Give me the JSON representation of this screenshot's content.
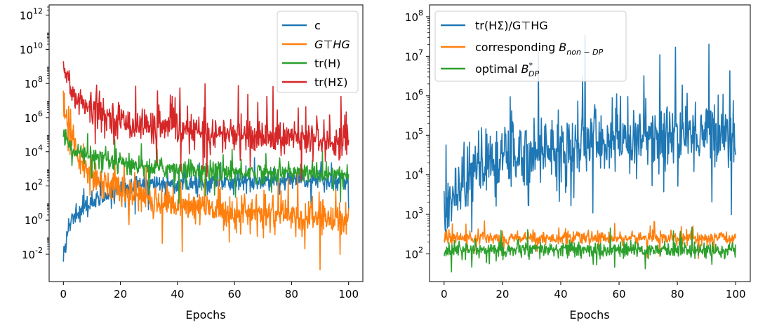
{
  "chart_data": [
    {
      "type": "line",
      "yscale": "log",
      "xlabel": "Epochs",
      "ylabel": "",
      "xlim": [
        -5,
        105
      ],
      "ylim_exp": [
        -3.6,
        12.6
      ],
      "xticks": [
        0,
        20,
        40,
        60,
        80,
        100
      ],
      "yticks": [
        {
          "base": "10",
          "exp": "12",
          "value": 12
        },
        {
          "base": "10",
          "exp": "10",
          "value": 10
        },
        {
          "base": "10",
          "exp": "8",
          "value": 8
        },
        {
          "base": "10",
          "exp": "6",
          "value": 6
        },
        {
          "base": "10",
          "exp": "4",
          "value": 4
        },
        {
          "base": "10",
          "exp": "2",
          "value": 2
        },
        {
          "base": "10",
          "exp": "0",
          "value": 0
        },
        {
          "base": "10",
          "exp": "-2",
          "value": -2
        }
      ],
      "legend_position": "top-right",
      "series": [
        {
          "name": "c",
          "legend_label": "c",
          "color": "#1f77b4",
          "x": [
            0,
            2,
            5,
            10,
            20,
            30,
            40,
            50,
            60,
            70,
            80,
            90,
            100
          ],
          "log10_values": [
            -2.2,
            -0.3,
            0.3,
            1.0,
            1.9,
            2.1,
            2.2,
            2.2,
            2.2,
            2.3,
            2.3,
            2.3,
            2.3
          ],
          "noise": 0.3
        },
        {
          "name": "G^T HG",
          "legend_label": "G⊤HG",
          "color": "#ff7f0e",
          "x": [
            0,
            2,
            5,
            10,
            20,
            30,
            40,
            50,
            60,
            70,
            80,
            90,
            100
          ],
          "log10_values": [
            6.5,
            5.5,
            4.0,
            2.6,
            1.8,
            1.2,
            0.9,
            0.7,
            0.5,
            0.3,
            0.2,
            0.1,
            0.1
          ],
          "noise": 0.5
        },
        {
          "name": "tr(H)",
          "legend_label": "tr(H)",
          "color": "#2ca02c",
          "x": [
            0,
            2,
            5,
            10,
            20,
            30,
            40,
            50,
            60,
            70,
            80,
            90,
            100
          ],
          "log10_values": [
            5.0,
            4.4,
            4.0,
            3.6,
            3.3,
            3.1,
            3.0,
            2.9,
            2.8,
            2.8,
            2.8,
            2.7,
            2.7
          ],
          "noise": 0.3
        },
        {
          "name": "tr(HΣ)",
          "legend_label": "tr(HΣ)",
          "color": "#d62728",
          "x": [
            0,
            2,
            5,
            10,
            20,
            30,
            40,
            50,
            60,
            70,
            80,
            90,
            100
          ],
          "log10_values": [
            9.0,
            8.0,
            7.0,
            6.4,
            5.8,
            5.5,
            5.3,
            5.1,
            5.0,
            4.9,
            4.8,
            4.7,
            4.6
          ],
          "noise": 0.5
        }
      ]
    },
    {
      "type": "line",
      "yscale": "log",
      "xlabel": "Epochs",
      "ylabel": "",
      "xlim": [
        -5,
        105
      ],
      "ylim_exp": [
        1.3,
        8.3
      ],
      "xticks": [
        0,
        20,
        40,
        60,
        80,
        100
      ],
      "yticks": [
        {
          "base": "10",
          "exp": "8",
          "value": 8
        },
        {
          "base": "10",
          "exp": "7",
          "value": 7
        },
        {
          "base": "10",
          "exp": "6",
          "value": 6
        },
        {
          "base": "10",
          "exp": "5",
          "value": 5
        },
        {
          "base": "10",
          "exp": "4",
          "value": 4
        },
        {
          "base": "10",
          "exp": "3",
          "value": 3
        },
        {
          "base": "10",
          "exp": "2",
          "value": 2
        }
      ],
      "legend_position": "top-left",
      "series": [
        {
          "name": "tr(HΣ)/G^T HG",
          "legend_label": "tr(HΣ)/G⊤HG",
          "color": "#1f77b4",
          "x": [
            0,
            5,
            10,
            20,
            30,
            40,
            50,
            60,
            70,
            80,
            90,
            100
          ],
          "log10_values": [
            3.2,
            3.7,
            4.1,
            4.4,
            4.6,
            4.7,
            4.8,
            4.9,
            5.0,
            5.0,
            5.1,
            5.1
          ],
          "noise": 0.45
        },
        {
          "name": "corresponding B_non-DP",
          "legend_label": "corresponding",
          "legend_math": "B",
          "legend_sub": "non − DP",
          "color": "#ff7f0e",
          "x": [
            0,
            50,
            100
          ],
          "log10_values": [
            2.4,
            2.4,
            2.4
          ],
          "noise": 0.08
        },
        {
          "name": "optimal B*_DP",
          "legend_label": "optimal",
          "legend_math": "B",
          "legend_sup": "*",
          "legend_sub": "DP",
          "color": "#2ca02c",
          "x": [
            0,
            50,
            100
          ],
          "log10_values": [
            2.1,
            2.1,
            2.1
          ],
          "noise": 0.1
        }
      ]
    }
  ]
}
